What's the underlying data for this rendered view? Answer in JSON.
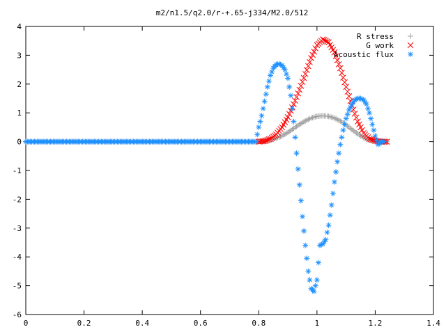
{
  "chart_data": {
    "type": "scatter",
    "title": "m2/n1.5/q2.0/r-+.65-j334/M2.0/512",
    "xlabel": "",
    "ylabel": "",
    "xlim": [
      0,
      1.4
    ],
    "ylim": [
      -6,
      4
    ],
    "x_ticks": [
      "0",
      "0.2",
      "0.4",
      "0.6",
      "0.8",
      "1",
      "1.2",
      "1.4"
    ],
    "y_ticks": [
      "4",
      "3",
      "2",
      "1",
      "0",
      "-1",
      "-2",
      "-3",
      "-4",
      "-5",
      "-6"
    ],
    "grid": false,
    "legend_position": "top-right",
    "series": [
      {
        "name": "R stress",
        "marker": "plus",
        "color": "#a0a0a0",
        "x": [
          0.0,
          0.1,
          0.2,
          0.3,
          0.4,
          0.5,
          0.6,
          0.7,
          0.78,
          0.82,
          0.85,
          0.88,
          0.9,
          0.92,
          0.94,
          0.96,
          0.98,
          1.0,
          1.02,
          1.04,
          1.06,
          1.08,
          1.1,
          1.12,
          1.14,
          1.16,
          1.18,
          1.2,
          1.22,
          1.24
        ],
        "y": [
          0,
          0,
          0,
          0,
          0,
          0,
          0,
          0,
          0,
          0.02,
          0.08,
          0.2,
          0.32,
          0.46,
          0.6,
          0.72,
          0.82,
          0.88,
          0.9,
          0.88,
          0.82,
          0.72,
          0.58,
          0.42,
          0.27,
          0.14,
          0.06,
          0.02,
          0.0,
          0.0
        ]
      },
      {
        "name": "G work",
        "marker": "cross",
        "color": "#ff0000",
        "x": [
          0.8,
          0.82,
          0.84,
          0.86,
          0.88,
          0.9,
          0.92,
          0.94,
          0.96,
          0.98,
          1.0,
          1.02,
          1.04,
          1.06,
          1.08,
          1.1,
          1.12,
          1.14,
          1.16,
          1.18,
          1.2,
          1.22,
          1.24
        ],
        "y": [
          0.0,
          0.02,
          0.1,
          0.25,
          0.5,
          0.85,
          1.3,
          1.8,
          2.35,
          2.9,
          3.35,
          3.55,
          3.45,
          3.1,
          2.55,
          1.9,
          1.25,
          0.7,
          0.3,
          0.1,
          0.03,
          0.0,
          0.0
        ]
      },
      {
        "name": "Acoustic flux",
        "marker": "star",
        "color": "#1e90ff",
        "x": [
          0.0,
          0.1,
          0.2,
          0.3,
          0.4,
          0.5,
          0.6,
          0.7,
          0.79,
          0.8,
          0.81,
          0.82,
          0.83,
          0.84,
          0.85,
          0.86,
          0.87,
          0.88,
          0.89,
          0.9,
          0.91,
          0.92,
          0.93,
          0.94,
          0.95,
          0.96,
          0.97,
          0.98,
          0.99,
          1.0,
          1.01,
          1.02,
          1.03,
          1.04,
          1.05,
          1.06,
          1.07,
          1.08,
          1.09,
          1.1,
          1.11,
          1.12,
          1.13,
          1.14,
          1.15,
          1.16,
          1.17,
          1.18,
          1.19,
          1.2,
          1.21,
          1.22,
          1.23
        ],
        "y": [
          0,
          0,
          0,
          0,
          0,
          0,
          0,
          0,
          0,
          0.5,
          0.9,
          1.4,
          1.9,
          2.3,
          2.55,
          2.68,
          2.7,
          2.65,
          2.5,
          2.2,
          1.6,
          0.7,
          -0.4,
          -1.5,
          -2.6,
          -3.6,
          -4.5,
          -5.1,
          -5.2,
          -4.8,
          -3.6,
          -3.55,
          -3.4,
          -2.9,
          -2.2,
          -1.4,
          -0.7,
          -0.1,
          0.4,
          0.8,
          1.1,
          1.3,
          1.45,
          1.5,
          1.5,
          1.45,
          1.3,
          1.0,
          0.6,
          0.2,
          -0.1,
          0.0,
          0.0
        ]
      }
    ]
  }
}
